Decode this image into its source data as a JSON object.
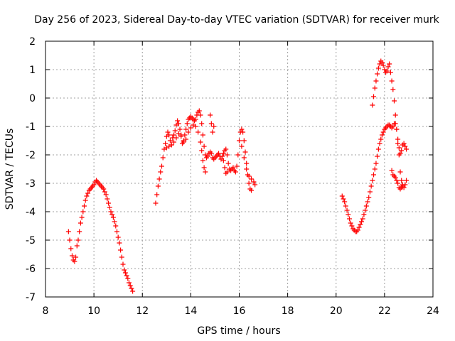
{
  "chart_data": {
    "type": "scatter",
    "title": "Day 256 of 2023, Sidereal Day-to-day VTEC variation (SDTVAR) for receiver murk",
    "xlabel": "GPS time / hours",
    "ylabel": "SDTVAR / TECUs",
    "xlim": [
      8,
      24
    ],
    "ylim": [
      -7,
      2
    ],
    "xticks": [
      8,
      10,
      12,
      14,
      16,
      18,
      20,
      22,
      24
    ],
    "yticks": [
      -7,
      -6,
      -5,
      -4,
      -3,
      -2,
      -1,
      0,
      1,
      2
    ],
    "grid": true,
    "marker": "+",
    "color": "#ff0000",
    "series": [
      {
        "name": "SDTVAR",
        "segments": [
          [
            [
              8.95,
              -4.7
            ],
            [
              9.0,
              -5.0
            ],
            [
              9.05,
              -5.3
            ],
            [
              9.1,
              -5.55
            ],
            [
              9.15,
              -5.7
            ],
            [
              9.2,
              -5.75
            ],
            [
              9.25,
              -5.6
            ],
            [
              9.3,
              -5.2
            ],
            [
              9.35,
              -5.0
            ],
            [
              9.4,
              -4.7
            ],
            [
              9.45,
              -4.4
            ],
            [
              9.5,
              -4.2
            ],
            [
              9.55,
              -4.0
            ],
            [
              9.6,
              -3.8
            ],
            [
              9.65,
              -3.6
            ],
            [
              9.7,
              -3.45
            ],
            [
              9.75,
              -3.35
            ],
            [
              9.8,
              -3.25
            ],
            [
              9.85,
              -3.2
            ],
            [
              9.9,
              -3.15
            ],
            [
              9.95,
              -3.1
            ],
            [
              10.0,
              -3.05
            ],
            [
              10.05,
              -2.95
            ],
            [
              10.1,
              -2.9
            ],
            [
              10.15,
              -2.95
            ],
            [
              10.2,
              -3.0
            ],
            [
              10.25,
              -3.05
            ],
            [
              10.3,
              -3.1
            ],
            [
              10.35,
              -3.15
            ],
            [
              10.4,
              -3.2
            ],
            [
              10.45,
              -3.3
            ],
            [
              10.5,
              -3.4
            ],
            [
              10.55,
              -3.55
            ],
            [
              10.6,
              -3.7
            ],
            [
              10.65,
              -3.85
            ],
            [
              10.7,
              -4.0
            ],
            [
              10.75,
              -4.1
            ],
            [
              10.8,
              -4.2
            ],
            [
              10.85,
              -4.35
            ],
            [
              10.9,
              -4.5
            ],
            [
              10.95,
              -4.7
            ],
            [
              11.0,
              -4.9
            ],
            [
              11.05,
              -5.1
            ],
            [
              11.1,
              -5.35
            ],
            [
              11.15,
              -5.6
            ],
            [
              11.2,
              -5.85
            ],
            [
              11.25,
              -6.05
            ],
            [
              11.3,
              -6.15
            ],
            [
              11.35,
              -6.25
            ],
            [
              11.4,
              -6.35
            ],
            [
              11.45,
              -6.5
            ],
            [
              11.5,
              -6.6
            ],
            [
              11.55,
              -6.7
            ],
            [
              11.6,
              -6.8
            ]
          ],
          [
            [
              12.55,
              -3.7
            ],
            [
              12.6,
              -3.4
            ],
            [
              12.65,
              -3.1
            ],
            [
              12.7,
              -2.85
            ],
            [
              12.75,
              -2.6
            ],
            [
              12.8,
              -2.4
            ],
            [
              12.85,
              -2.1
            ],
            [
              12.9,
              -1.8
            ],
            [
              12.95,
              -1.6
            ],
            [
              13.0,
              -1.35
            ],
            [
              13.05,
              -1.2
            ],
            [
              13.1,
              -1.3
            ],
            [
              13.15,
              -1.5
            ],
            [
              13.2,
              -1.65
            ],
            [
              13.25,
              -1.4
            ],
            [
              13.3,
              -1.3
            ],
            [
              13.35,
              -1.15
            ],
            [
              13.4,
              -0.95
            ],
            [
              13.45,
              -0.8
            ],
            [
              13.5,
              -0.9
            ],
            [
              13.55,
              -1.1
            ],
            [
              13.6,
              -1.3
            ],
            [
              13.65,
              -1.6
            ],
            [
              13.7,
              -1.5
            ],
            [
              13.75,
              -1.3
            ],
            [
              13.8,
              -1.1
            ],
            [
              13.85,
              -0.9
            ],
            [
              13.9,
              -0.75
            ],
            [
              13.95,
              -0.7
            ],
            [
              14.0,
              -0.65
            ],
            [
              14.05,
              -0.7
            ],
            [
              14.1,
              -0.75
            ],
            [
              14.15,
              -0.8
            ],
            [
              14.2,
              -0.75
            ],
            [
              14.25,
              -0.6
            ],
            [
              14.3,
              -0.5
            ],
            [
              14.35,
              -0.45
            ],
            [
              14.4,
              -0.6
            ],
            [
              14.45,
              -0.9
            ],
            [
              14.5,
              -1.3
            ],
            [
              14.55,
              -1.7
            ],
            [
              14.6,
              -2.0
            ],
            [
              14.65,
              -2.1
            ],
            [
              14.7,
              -2.05
            ],
            [
              14.75,
              -1.95
            ],
            [
              14.8,
              -1.9
            ],
            [
              14.85,
              -1.95
            ],
            [
              14.9,
              -2.1
            ],
            [
              14.95,
              -2.15
            ],
            [
              15.0,
              -2.1
            ],
            [
              15.05,
              -2.05
            ],
            [
              15.1,
              -2.0
            ],
            [
              15.15,
              -1.95
            ],
            [
              15.2,
              -2.05
            ],
            [
              15.25,
              -2.15
            ],
            [
              15.3,
              -2.05
            ],
            [
              15.35,
              -1.95
            ],
            [
              15.4,
              -1.85
            ],
            [
              15.45,
              -1.8
            ],
            [
              15.5,
              -2.0
            ],
            [
              15.55,
              -2.3
            ],
            [
              15.6,
              -2.5
            ],
            [
              15.65,
              -2.55
            ],
            [
              15.7,
              -2.5
            ],
            [
              15.75,
              -2.45
            ],
            [
              15.8,
              -2.55
            ],
            [
              15.85,
              -2.6
            ],
            [
              15.9,
              -2.4
            ],
            [
              15.95,
              -2.0
            ],
            [
              16.0,
              -1.5
            ],
            [
              16.05,
              -1.2
            ],
            [
              16.1,
              -1.1
            ],
            [
              16.15,
              -1.2
            ],
            [
              16.2,
              -1.5
            ],
            [
              16.25,
              -1.9
            ],
            [
              16.3,
              -2.3
            ],
            [
              16.35,
              -2.7
            ],
            [
              16.4,
              -3.0
            ],
            [
              16.45,
              -3.2
            ],
            [
              16.5,
              -3.25
            ]
          ],
          [
            [
              13.0,
              -1.75
            ],
            [
              13.1,
              -1.7
            ],
            [
              13.2,
              -1.65
            ],
            [
              13.3,
              -1.55
            ],
            [
              13.4,
              -1.4
            ],
            [
              13.5,
              -1.25
            ],
            [
              13.6,
              -1.35
            ],
            [
              13.7,
              -1.55
            ],
            [
              13.8,
              -1.45
            ],
            [
              13.9,
              -1.2
            ],
            [
              14.0,
              -1.05
            ],
            [
              14.1,
              -0.95
            ],
            [
              14.2,
              -1.0
            ],
            [
              14.3,
              -1.2
            ],
            [
              14.4,
              -1.55
            ],
            [
              14.45,
              -1.85
            ],
            [
              14.5,
              -2.2
            ],
            [
              14.55,
              -2.45
            ],
            [
              14.6,
              -2.6
            ],
            [
              14.8,
              -0.6
            ],
            [
              14.85,
              -0.9
            ],
            [
              14.9,
              -1.2
            ],
            [
              14.95,
              -1.0
            ],
            [
              15.35,
              -2.2
            ],
            [
              15.4,
              -2.45
            ],
            [
              15.45,
              -2.65
            ],
            [
              15.5,
              -2.6
            ],
            [
              16.1,
              -1.7
            ],
            [
              16.2,
              -2.1
            ],
            [
              16.3,
              -2.5
            ],
            [
              16.4,
              -2.75
            ],
            [
              16.5,
              -2.85
            ],
            [
              16.6,
              -2.95
            ],
            [
              16.65,
              -3.05
            ]
          ],
          [
            [
              20.25,
              -3.45
            ],
            [
              20.3,
              -3.55
            ],
            [
              20.35,
              -3.65
            ],
            [
              20.4,
              -3.8
            ],
            [
              20.45,
              -3.95
            ],
            [
              20.5,
              -4.1
            ],
            [
              20.55,
              -4.25
            ],
            [
              20.6,
              -4.4
            ],
            [
              20.65,
              -4.5
            ],
            [
              20.7,
              -4.6
            ],
            [
              20.75,
              -4.65
            ],
            [
              20.8,
              -4.7
            ],
            [
              20.85,
              -4.7
            ],
            [
              20.9,
              -4.65
            ],
            [
              20.95,
              -4.55
            ],
            [
              21.0,
              -4.45
            ],
            [
              21.05,
              -4.35
            ],
            [
              21.1,
              -4.25
            ],
            [
              21.15,
              -4.1
            ],
            [
              21.2,
              -3.95
            ],
            [
              21.25,
              -3.8
            ],
            [
              21.3,
              -3.65
            ],
            [
              21.35,
              -3.5
            ],
            [
              21.4,
              -3.3
            ],
            [
              21.45,
              -3.1
            ],
            [
              21.5,
              -2.9
            ],
            [
              21.55,
              -2.7
            ],
            [
              21.6,
              -2.5
            ],
            [
              21.65,
              -2.3
            ],
            [
              21.7,
              -2.05
            ],
            [
              21.75,
              -1.8
            ],
            [
              21.8,
              -1.6
            ],
            [
              21.85,
              -1.45
            ],
            [
              21.9,
              -1.3
            ],
            [
              21.95,
              -1.2
            ],
            [
              22.0,
              -1.1
            ],
            [
              22.05,
              -1.05
            ],
            [
              22.1,
              -1.0
            ],
            [
              22.15,
              -0.95
            ],
            [
              22.2,
              -0.95
            ],
            [
              22.25,
              -1.0
            ],
            [
              22.3,
              -1.05
            ],
            [
              22.35,
              -1.0
            ],
            [
              22.4,
              -0.9
            ],
            [
              22.45,
              -0.9
            ],
            [
              22.5,
              -1.1
            ],
            [
              22.55,
              -1.45
            ],
            [
              22.6,
              -1.75
            ],
            [
              22.65,
              -1.95
            ],
            [
              22.7,
              -1.85
            ],
            [
              22.75,
              -1.65
            ],
            [
              22.8,
              -1.6
            ],
            [
              22.85,
              -1.7
            ],
            [
              22.9,
              -1.8
            ]
          ],
          [
            [
              21.5,
              -0.25
            ],
            [
              21.55,
              0.05
            ],
            [
              21.6,
              0.35
            ],
            [
              21.65,
              0.6
            ],
            [
              21.7,
              0.85
            ],
            [
              21.75,
              1.05
            ],
            [
              21.8,
              1.2
            ],
            [
              21.85,
              1.3
            ],
            [
              21.9,
              1.25
            ],
            [
              21.95,
              1.15
            ],
            [
              22.0,
              1.0
            ],
            [
              22.05,
              0.9
            ],
            [
              22.1,
              0.95
            ],
            [
              22.15,
              1.1
            ],
            [
              22.2,
              1.2
            ],
            [
              22.25,
              0.9
            ],
            [
              22.3,
              0.6
            ],
            [
              22.35,
              0.3
            ],
            [
              22.4,
              -0.1
            ],
            [
              22.45,
              -0.6
            ],
            [
              22.5,
              -1.1
            ],
            [
              22.55,
              -1.6
            ],
            [
              22.6,
              -2.0
            ],
            [
              22.65,
              -2.6
            ],
            [
              22.7,
              -2.9
            ],
            [
              22.75,
              -3.1
            ],
            [
              22.8,
              -3.15
            ],
            [
              22.85,
              -3.05
            ],
            [
              22.9,
              -2.9
            ]
          ],
          [
            [
              22.3,
              -2.55
            ],
            [
              22.35,
              -2.7
            ],
            [
              22.4,
              -2.75
            ],
            [
              22.45,
              -2.8
            ],
            [
              22.5,
              -2.9
            ],
            [
              22.55,
              -3.0
            ],
            [
              22.6,
              -3.15
            ],
            [
              22.65,
              -3.2
            ],
            [
              22.7,
              -3.15
            ],
            [
              22.75,
              -3.05
            ]
          ]
        ]
      }
    ]
  }
}
